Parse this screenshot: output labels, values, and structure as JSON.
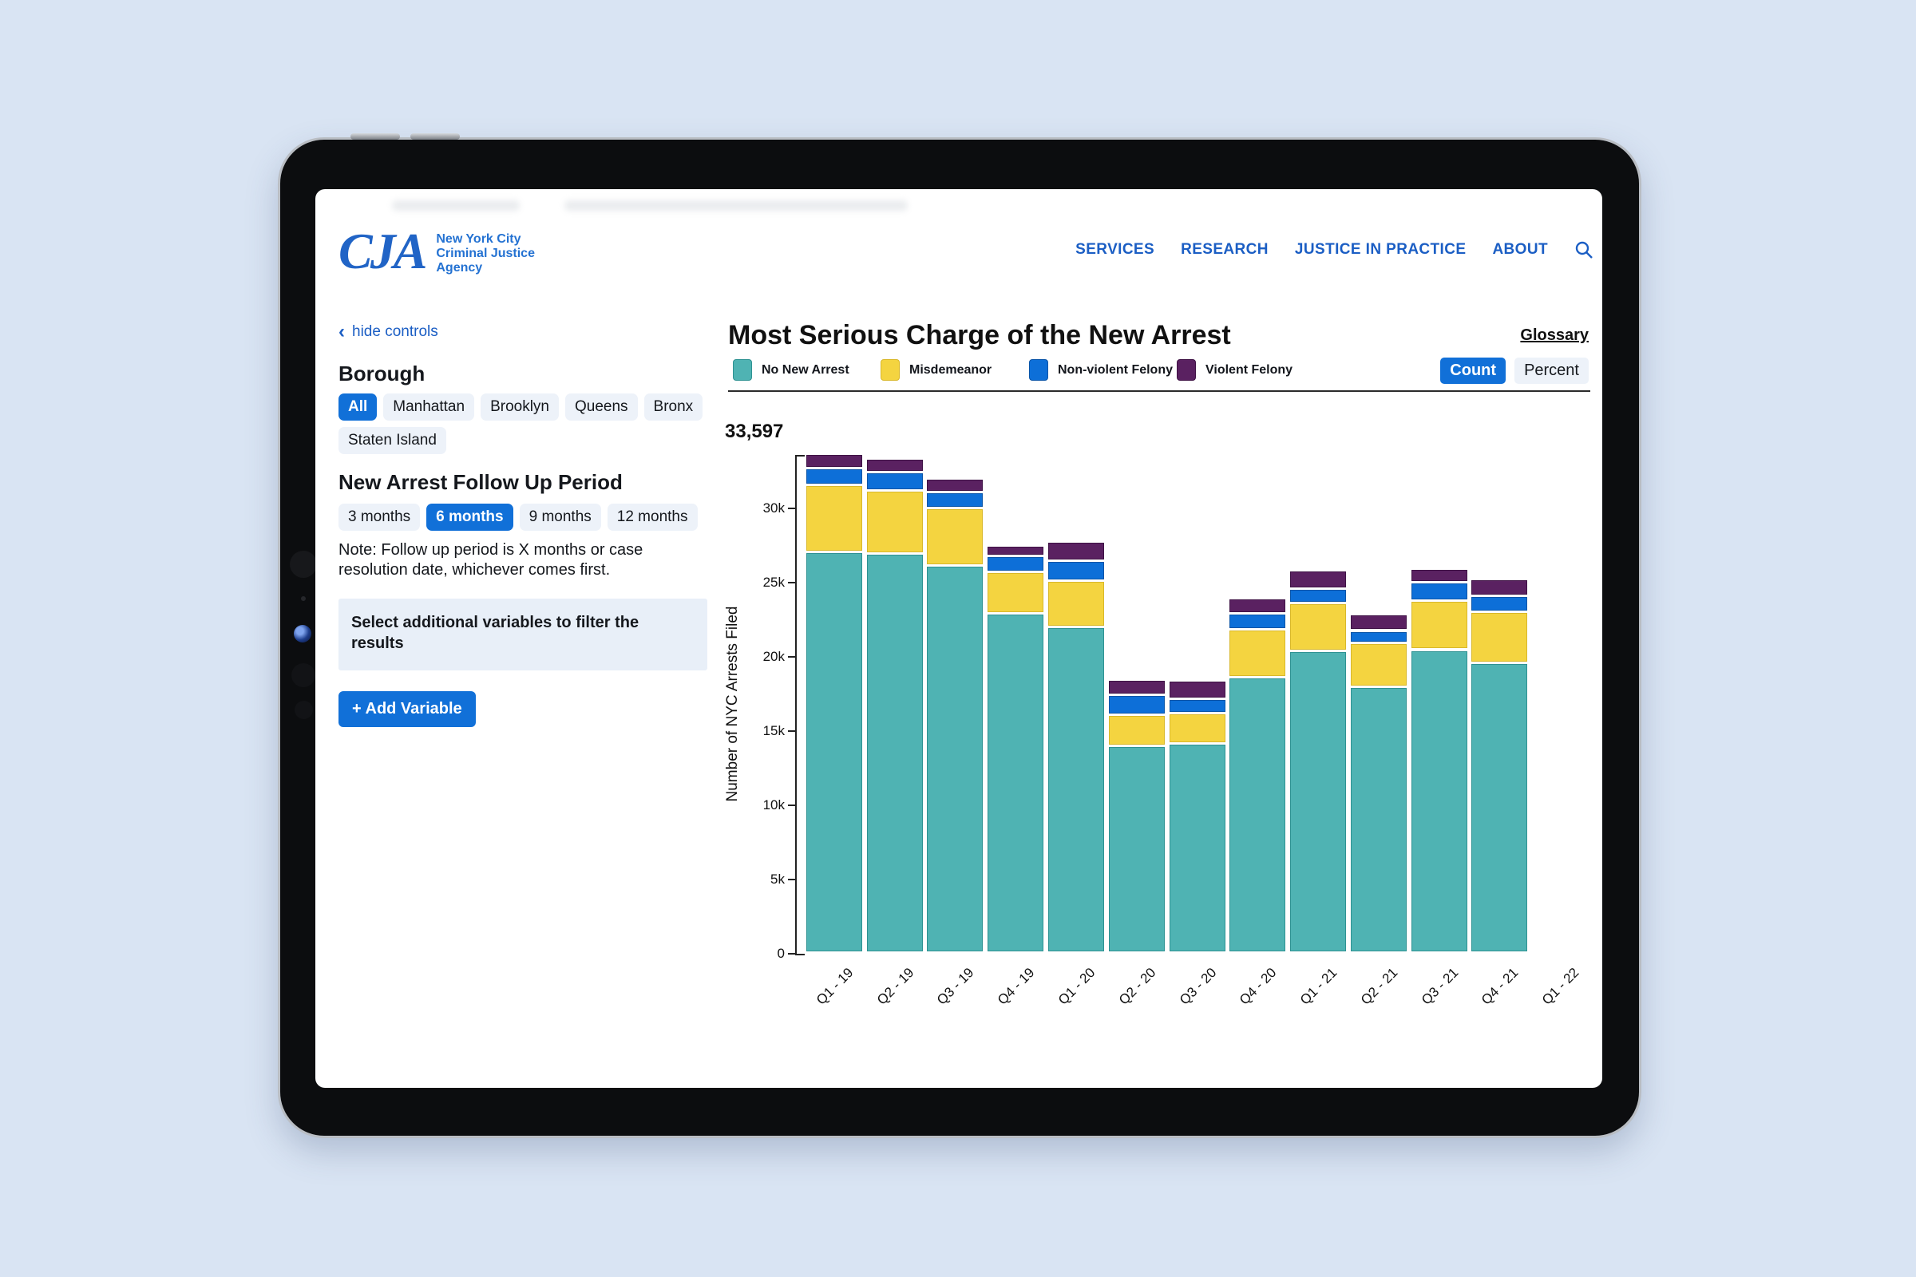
{
  "header": {
    "logo_acronym": "CJA",
    "logo_lines": [
      "New York City",
      "Criminal Justice",
      "Agency"
    ],
    "nav_items": [
      "SERVICES",
      "RESEARCH",
      "JUSTICE IN PRACTICE",
      "ABOUT"
    ],
    "search_icon": "search-icon"
  },
  "controls": {
    "hide_controls_label": "hide controls",
    "borough": {
      "heading": "Borough",
      "options": [
        "All",
        "Manhattan",
        "Brooklyn",
        "Queens",
        "Bronx",
        "Staten Island"
      ],
      "selected": "All"
    },
    "follow_up": {
      "heading": "New Arrest Follow Up Period",
      "options": [
        "3 months",
        "6 months",
        "9 months",
        "12 months"
      ],
      "selected": "6 months"
    },
    "note": "Note: Follow up period is X months or case resolution date, whichever comes first.",
    "filter_box_text": "Select additional variables to filter the results",
    "add_variable_label": "+ Add Variable"
  },
  "chart": {
    "title": "Most Serious Charge of the New Arrest",
    "glossary_label": "Glossary",
    "toggle": {
      "options": [
        "Count",
        "Percent"
      ],
      "selected": "Count"
    },
    "max_total_label": "33,597"
  },
  "chart_data": {
    "type": "bar",
    "stacked": true,
    "title": "Most Serious Charge of the New Arrest",
    "xlabel": "",
    "ylabel": "Number of NYC Arrests Filed",
    "ylim": [
      0,
      33597
    ],
    "grid": false,
    "legend_position": "top",
    "yticks": [
      {
        "value": 0,
        "label": "0"
      },
      {
        "value": 5000,
        "label": "5k"
      },
      {
        "value": 10000,
        "label": "10k"
      },
      {
        "value": 15000,
        "label": "15k"
      },
      {
        "value": 20000,
        "label": "20k"
      },
      {
        "value": 25000,
        "label": "25k"
      },
      {
        "value": 30000,
        "label": "30k"
      }
    ],
    "categories": [
      "Q1 - 19",
      "Q2 - 19",
      "Q3 - 19",
      "Q4 - 19",
      "Q1 - 20",
      "Q2 - 20",
      "Q3 - 20",
      "Q4 - 20",
      "Q1 - 21",
      "Q2 - 21",
      "Q3 - 21",
      "Q4 - 21",
      "Q1 - 22"
    ],
    "series": [
      {
        "name": "No New Arrest",
        "color": "#4fb3b3",
        "border": "#2e9292",
        "values": [
          27000,
          26900,
          26050,
          22850,
          21950,
          13900,
          14100,
          18550,
          20300,
          17900,
          20400,
          19500,
          null
        ]
      },
      {
        "name": "Misdemeanor",
        "color": "#f4d440",
        "border": "#d9b82a",
        "values": [
          4490,
          4200,
          3900,
          2800,
          3100,
          2100,
          2050,
          3200,
          3250,
          2950,
          3300,
          3450,
          null
        ]
      },
      {
        "name": "Non-violent Felony",
        "color": "#0d6fd8",
        "border": "#0a55a8",
        "values": [
          1150,
          1250,
          1070,
          1070,
          1340,
          1340,
          930,
          1070,
          980,
          840,
          1250,
          1100,
          null
        ]
      },
      {
        "name": "Violent Felony",
        "color": "#5a2161",
        "border": "#3f1245",
        "values": [
          957,
          930,
          900,
          710,
          1320,
          1070,
          1250,
          1070,
          1240,
          1120,
          880,
          1110,
          null
        ]
      }
    ]
  }
}
